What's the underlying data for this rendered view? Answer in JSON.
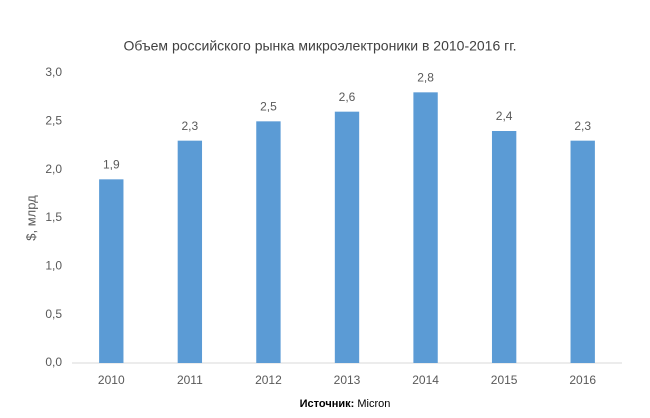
{
  "chart_data": {
    "type": "bar",
    "title": "Объем российского рынка микроэлектроники в 2010-2016 гг.",
    "y_label": "$, млрд",
    "source": {
      "label": "Источник:",
      "text": "Micron"
    },
    "categories": [
      "2010",
      "2011",
      "2012",
      "2013",
      "2014",
      "2015",
      "2016"
    ],
    "values": [
      1.9,
      2.3,
      2.5,
      2.6,
      2.8,
      2.4,
      2.3
    ],
    "value_labels": [
      "1,9",
      "2,3",
      "2,5",
      "2,6",
      "2,8",
      "2,4",
      "2,3"
    ],
    "color": "#5b9bd5",
    "ylim": [
      0,
      3
    ],
    "yticks": [
      {
        "value": 0,
        "label": "0,0"
      },
      {
        "value": 0.5,
        "label": "0,5"
      },
      {
        "value": 1,
        "label": "1,0"
      },
      {
        "value": 1.5,
        "label": "1,5"
      },
      {
        "value": 2,
        "label": "2,0"
      },
      {
        "value": 2.5,
        "label": "2,5"
      },
      {
        "value": 3,
        "label": "3,0"
      }
    ],
    "grid": false
  }
}
